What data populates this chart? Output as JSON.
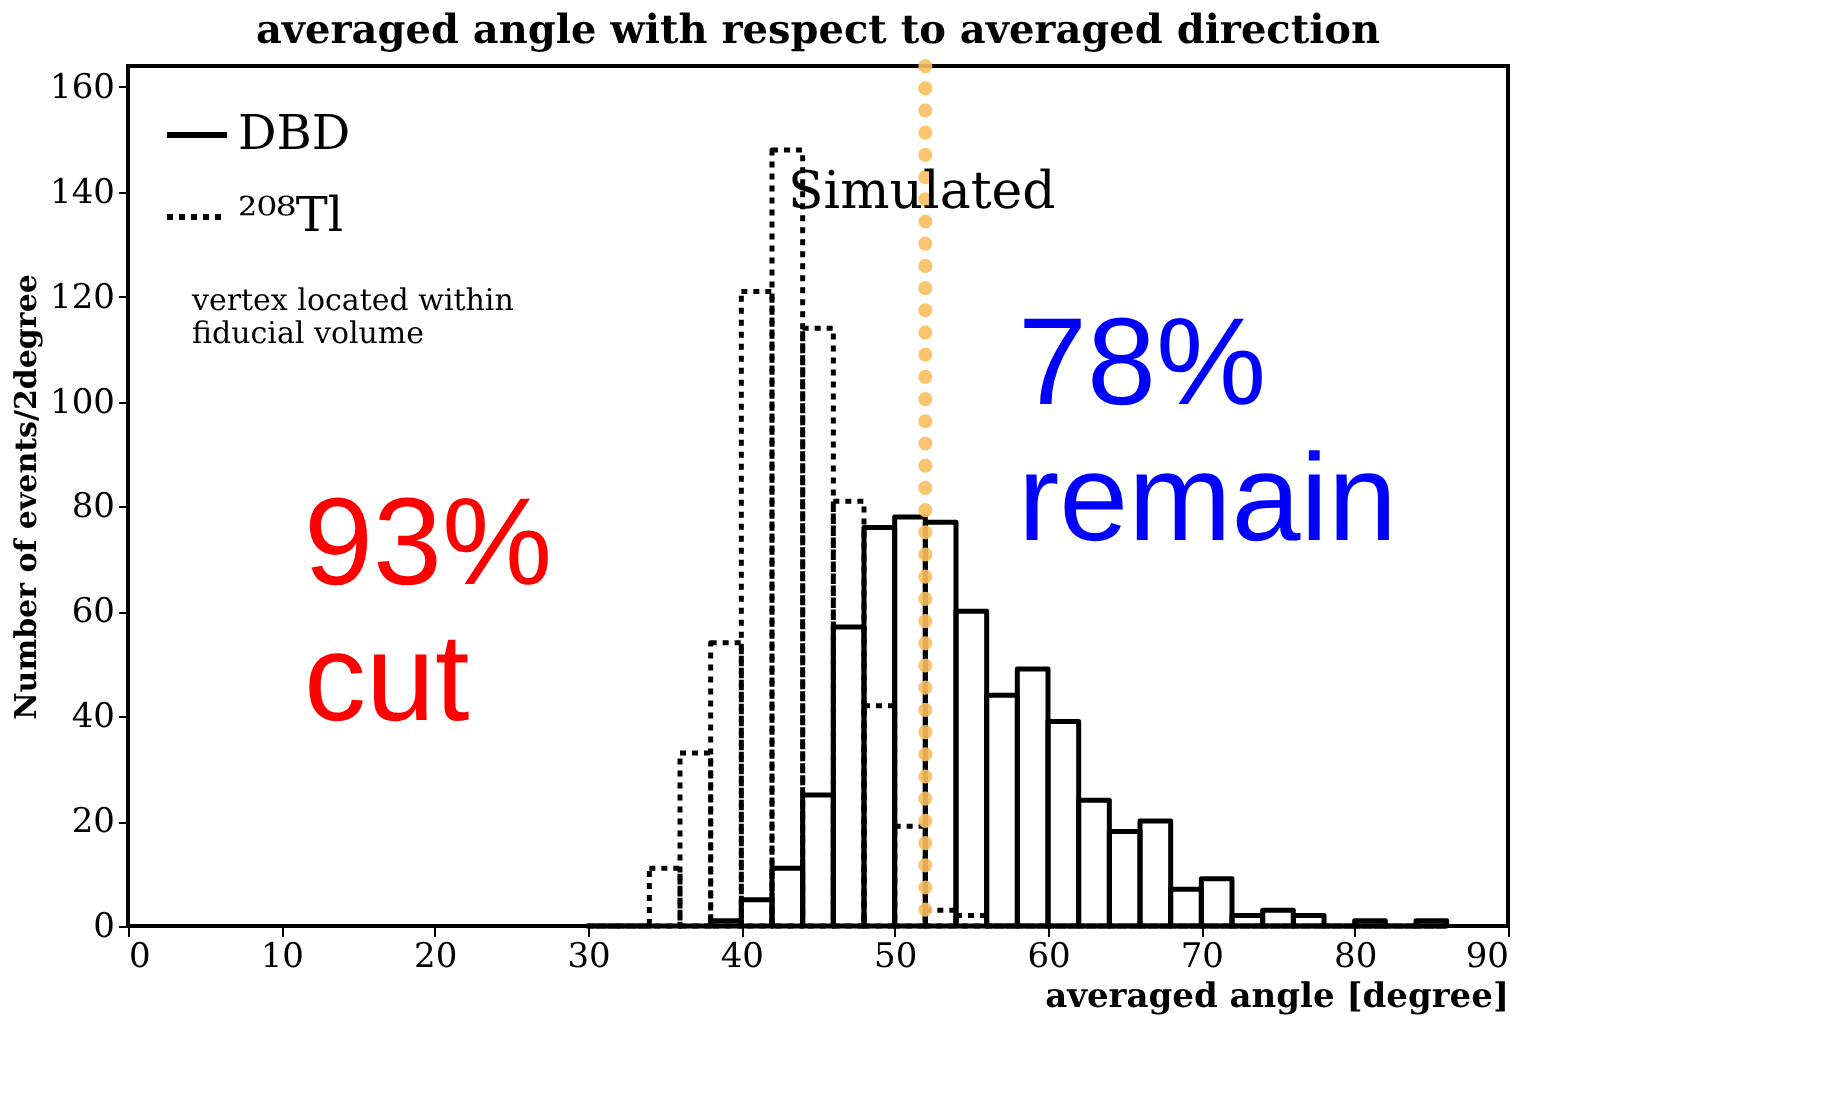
{
  "chart_data": {
    "type": "histogram",
    "title": "averaged angle with respect to averaged direction",
    "xlabel": "averaged angle [degree]",
    "ylabel": "Number of events/2degree",
    "bins": [
      30,
      32,
      34,
      36,
      38,
      40,
      42,
      44,
      46,
      48,
      50,
      52,
      54,
      56,
      58,
      60,
      62,
      64,
      66,
      68,
      70,
      72,
      74,
      76,
      78,
      80,
      82,
      84,
      86
    ],
    "series": [
      {
        "name": "DBD",
        "color": "#000000",
        "line_style": "solid",
        "values": [
          0,
          0,
          0,
          0,
          1,
          5,
          11,
          25,
          57,
          76,
          78,
          77,
          60,
          44,
          49,
          39,
          24,
          18,
          20,
          7,
          9,
          2,
          3,
          2,
          0,
          1,
          0,
          1
        ]
      },
      {
        "name": "²⁰⁸Tl",
        "color": "#000000",
        "line_style": "dotted",
        "values": [
          0,
          0,
          11,
          33,
          54,
          121,
          148,
          114,
          81,
          42,
          19,
          3,
          2,
          0,
          0,
          0,
          0,
          0,
          0,
          0,
          0,
          0,
          0,
          0,
          0,
          0,
          0,
          0
        ]
      }
    ],
    "xlim": [
      0,
      90
    ],
    "xticks": [
      0,
      10,
      20,
      30,
      40,
      50,
      60,
      70,
      80,
      90
    ],
    "ylim": [
      0,
      164
    ],
    "yticks": [
      0,
      20,
      40,
      60,
      80,
      100,
      120,
      140,
      160
    ],
    "grid": false,
    "legend": "top left",
    "ref_lines": [
      {
        "axis": "x",
        "value": 52,
        "color": "#fbbf5f",
        "line_style": "dotted"
      }
    ],
    "annotations": [
      "Simulated",
      "vertex located within\nfiducial volume",
      "93%\ncut",
      "78%\nremain"
    ]
  }
}
